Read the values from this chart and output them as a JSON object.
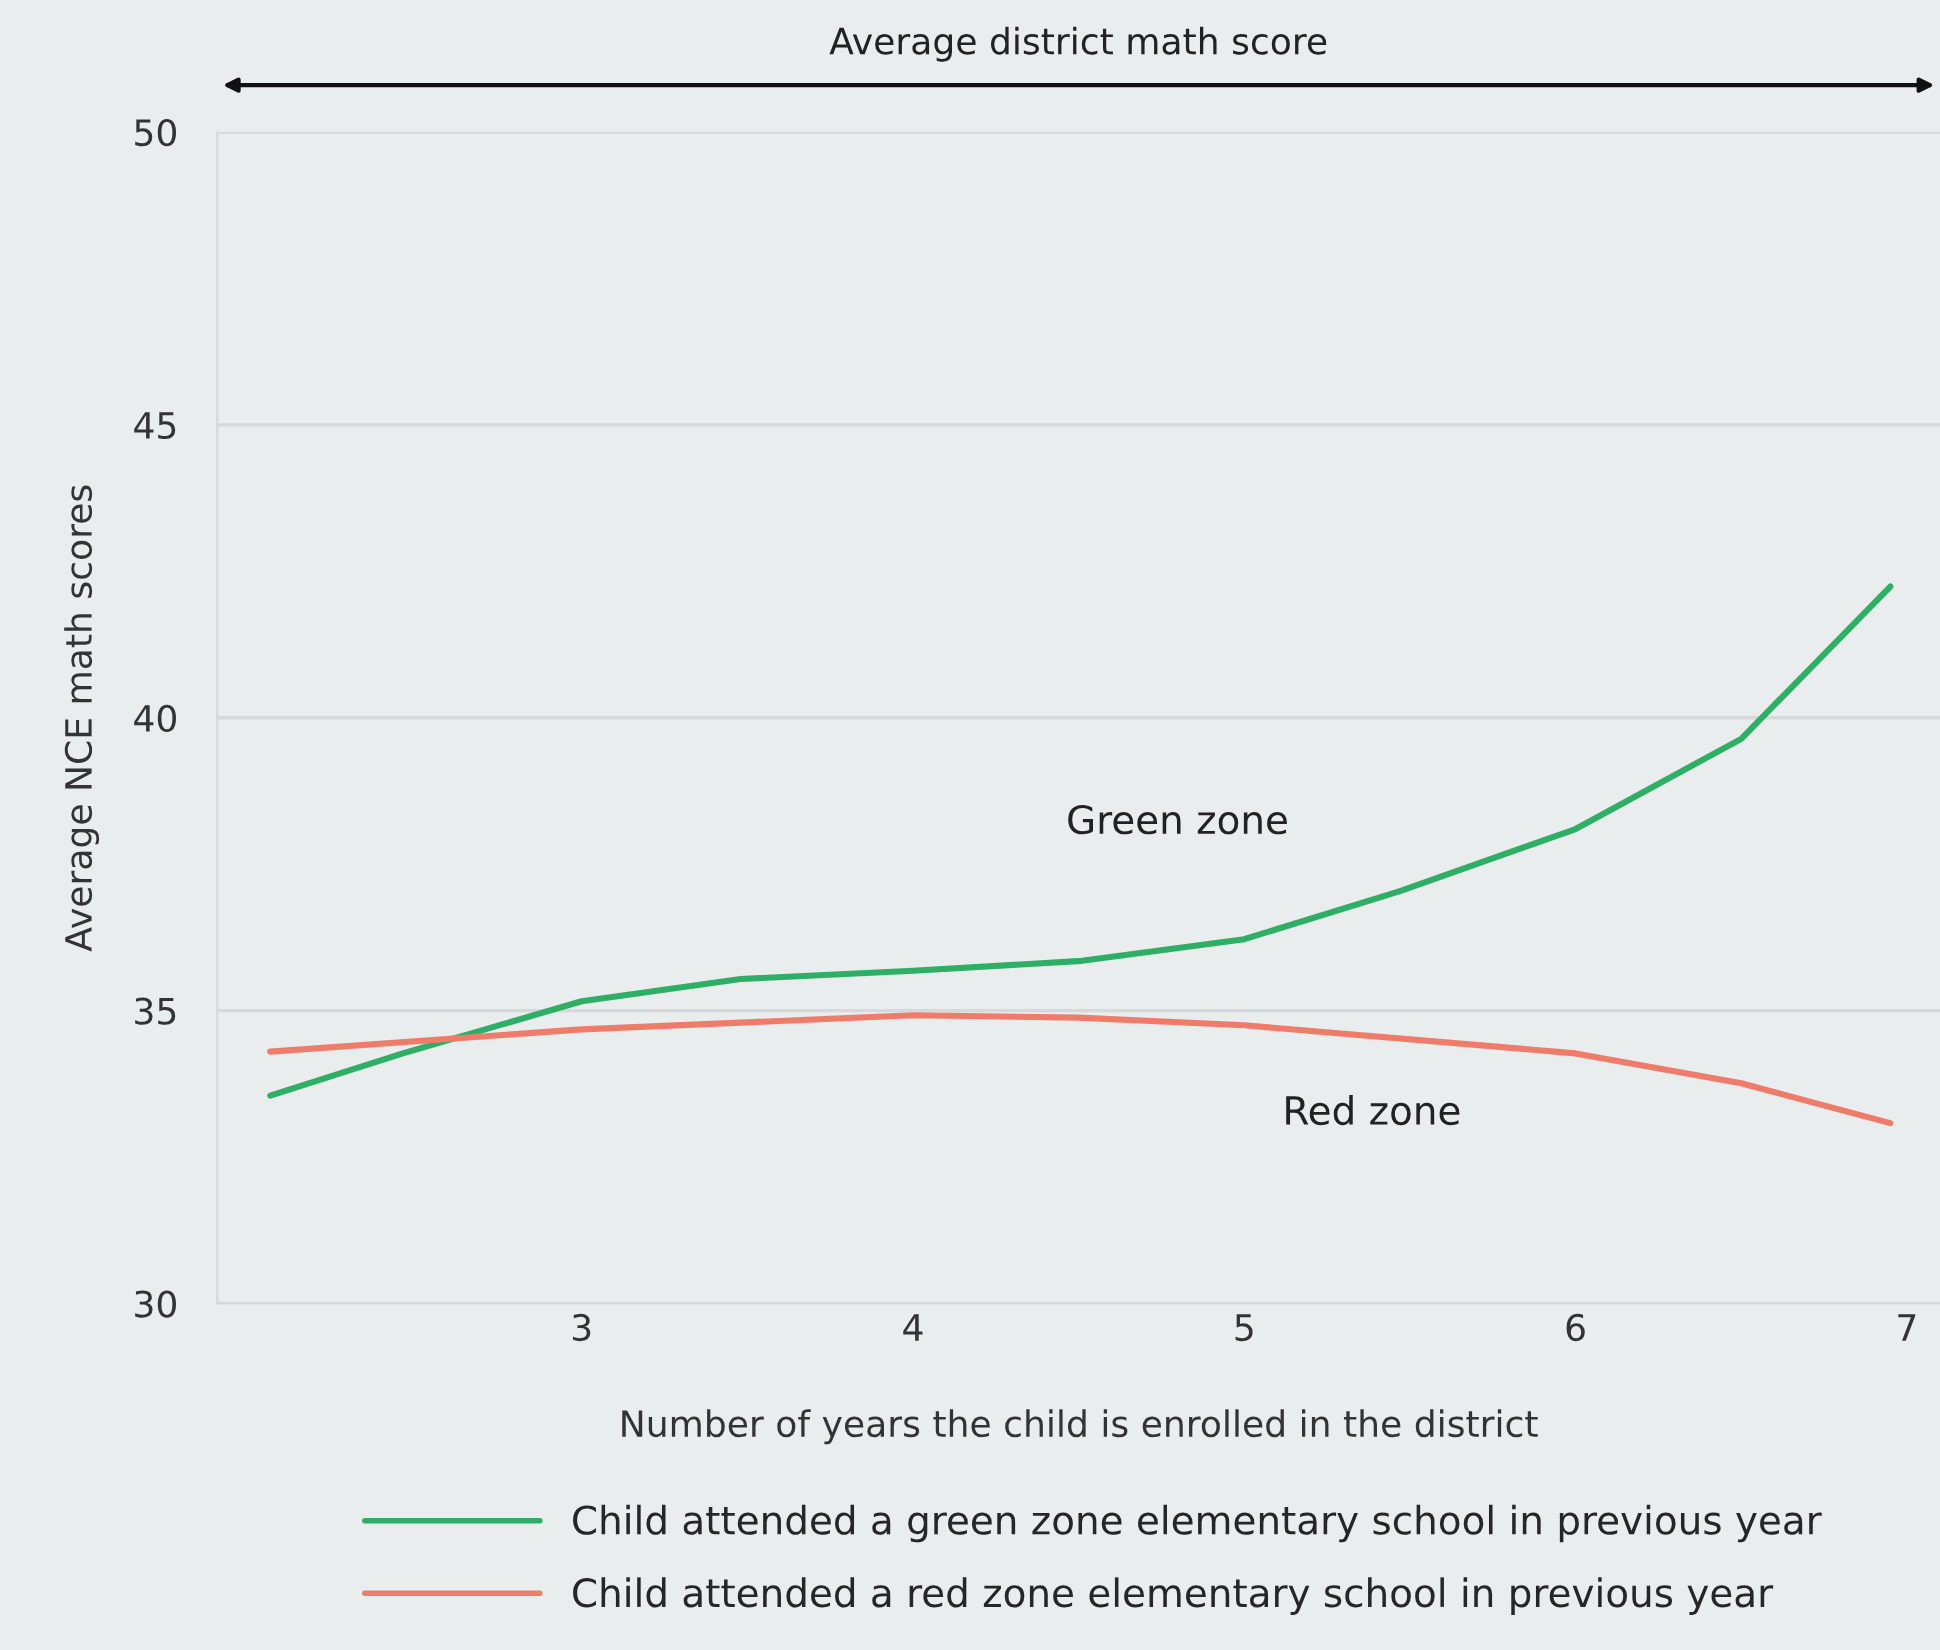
{
  "chart_data": {
    "type": "line",
    "xlabel": "Number of years the child is enrolled in the district",
    "ylabel": "Average NCE math scores",
    "annotations": [
      "Average district math score",
      "Green zone",
      "Red zone"
    ],
    "series": [
      {
        "name": "Child attended a green zone elementary school in previous year",
        "color": "#2fae66",
        "x": [
          2.06,
          2.46,
          3,
          3.48,
          4,
          4.51,
          5,
          5.47,
          6,
          6.5,
          6.95
        ],
        "values": [
          33.55,
          34.27,
          35.16,
          35.54,
          35.68,
          35.85,
          36.22,
          37.04,
          38.1,
          39.64,
          42.24
        ]
      },
      {
        "name": "Child attended a red zone elementary school in previous year",
        "color": "#ef7b6b",
        "x": [
          2.06,
          3,
          4,
          4.5,
          5,
          6,
          6.5,
          6.95
        ],
        "values": [
          34.3,
          34.68,
          34.92,
          34.88,
          34.75,
          34.27,
          33.76,
          33.08
        ]
      }
    ],
    "xlim": [
      1.9,
      7.1
    ],
    "xticks": [
      3,
      4,
      5,
      6,
      7
    ],
    "ylim": [
      30,
      50
    ],
    "yticks": [
      30,
      35,
      40,
      45,
      50
    ],
    "grid": "y",
    "legend": "bottom",
    "marker": "none",
    "line_style": "solid"
  }
}
